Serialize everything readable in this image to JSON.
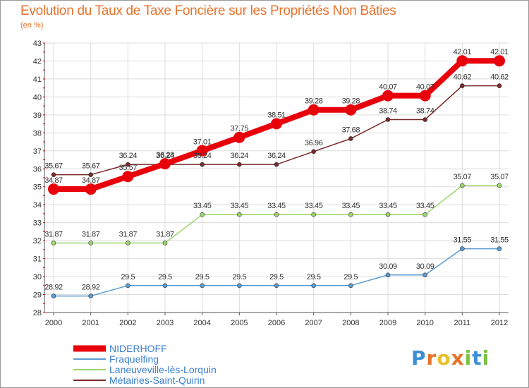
{
  "title": "Evolution du Taux de Taxe Foncière sur les Propriétés Non Bâties",
  "subtitle": "(en %)",
  "logo": {
    "letters": [
      "P",
      "r",
      "o",
      "x",
      "i",
      "t",
      "i"
    ],
    "colors": [
      "#3a8fd6",
      "#e8722a",
      "#e8c12a",
      "#e8722a",
      "#7cc242",
      "#3a8fd6",
      "#7cc242"
    ]
  },
  "chart_data": {
    "type": "line",
    "title": "Evolution du Taux de Taxe Foncière sur les Propriétés Non Bâties",
    "ylabel": "(en %)",
    "x": [
      "2000",
      "2001",
      "2002",
      "2003",
      "2004",
      "2005",
      "2006",
      "2007",
      "2008",
      "2009",
      "2010",
      "2011",
      "2012"
    ],
    "yticks": [
      28,
      29,
      30,
      31,
      32,
      33,
      34,
      35,
      36,
      37,
      38,
      39,
      40,
      41,
      42,
      43
    ],
    "ylim": [
      28,
      43
    ],
    "grid": true,
    "legend_position": "bottom-left",
    "series": [
      {
        "name": "NIDERHOFF",
        "color": "#e8000b",
        "width": 8,
        "marker": 8,
        "values": [
          34.87,
          34.87,
          35.57,
          36.28,
          37.01,
          37.75,
          38.51,
          39.28,
          39.28,
          40.07,
          40.07,
          42.01,
          42.01
        ],
        "labels": [
          "34.87",
          "34.87",
          "35.57",
          "36.28",
          "37.01",
          "37.75",
          "38.51",
          "39.28",
          "39.28",
          "40.07",
          "40.07",
          "42.01",
          "42.01"
        ]
      },
      {
        "name": "Fraquelfing",
        "color": "#5b9bd0",
        "width": 1.5,
        "marker": 3,
        "values": [
          28.92,
          28.92,
          29.5,
          29.5,
          29.5,
          29.5,
          29.5,
          29.5,
          29.5,
          30.09,
          30.09,
          31.55,
          31.55
        ],
        "labels": [
          "28.92",
          "28.92",
          "29.5",
          "29.5",
          "29.5",
          "29.5",
          "29.5",
          "29.5",
          "29.5",
          "30.09",
          "30.09",
          "31.55",
          "31.55"
        ]
      },
      {
        "name": "Laneuveville-lès-Lorquin",
        "color": "#9cd46a",
        "width": 1.5,
        "marker": 3,
        "values": [
          31.87,
          31.87,
          31.87,
          31.87,
          33.45,
          33.45,
          33.45,
          33.45,
          33.45,
          33.45,
          33.45,
          35.07,
          35.07
        ],
        "labels": [
          "31.87",
          "31.87",
          "31.87",
          "31.87",
          "33.45",
          "33.45",
          "33.45",
          "33.45",
          "33.45",
          "33.45",
          "33.45",
          "35.07",
          "35.07"
        ]
      },
      {
        "name": "Métairies-Saint-Quirin",
        "color": "#7a2a2a",
        "width": 1.5,
        "marker": 3,
        "values": [
          35.67,
          35.67,
          36.24,
          36.24,
          36.24,
          36.24,
          36.24,
          36.96,
          37.68,
          38.74,
          38.74,
          40.62,
          40.62
        ],
        "labels": [
          "35.67",
          "35.67",
          "36.24",
          "36.24",
          "36.24",
          "36.24",
          "36.24",
          "36.96",
          "37.68",
          "38.74",
          "38.74",
          "40.62",
          "40.62"
        ]
      }
    ]
  }
}
